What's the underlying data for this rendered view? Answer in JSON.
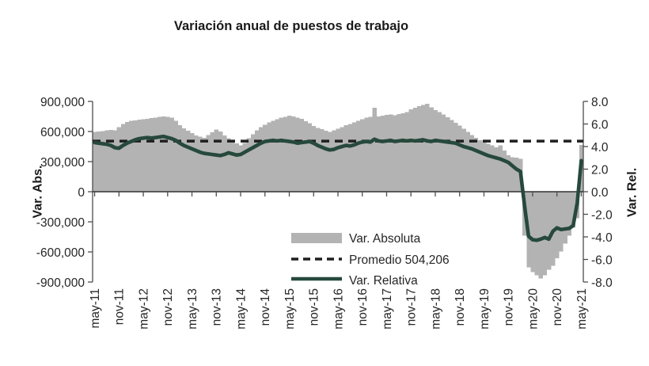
{
  "title": "Variación anual de puestos de trabajo",
  "colors": {
    "bar": "#b3b3b3",
    "average_line": "#1f1f1f",
    "relative_line": "#26493c",
    "axis": "#4d4d4d",
    "text": "#262626"
  },
  "legend": {
    "items": [
      {
        "label": "Var. Absoluta",
        "type": "bar"
      },
      {
        "label": "Promedio 504,206",
        "type": "dashed-line"
      },
      {
        "label": "Var. Relativa",
        "type": "line"
      }
    ]
  },
  "chart_data": {
    "type": "bar+line combo, dual axis, monthly series may-11 to may-21 (121 points)",
    "title": "Variación anual de puestos de trabajo",
    "left_axis": {
      "title": "Var. Abs.",
      "min": -900000,
      "max": 900000,
      "step": 300000,
      "tick_labels": [
        "900,000",
        "600,000",
        "300,000",
        "0",
        "-300,000",
        "-600,000",
        "-900,000"
      ],
      "tick_values": [
        900000,
        600000,
        300000,
        0,
        -300000,
        -600000,
        -900000
      ]
    },
    "right_axis": {
      "title": "Var. Rel.",
      "min": -8.0,
      "max": 8.0,
      "step": 2.0,
      "tick_labels": [
        "8.0",
        "6.0",
        "4.0",
        "2.0",
        "0.0",
        "-2.0",
        "-4.0",
        "-6.0",
        "-8.0"
      ],
      "tick_values": [
        8,
        6,
        4,
        2,
        0,
        -2,
        -4,
        -6,
        -8
      ]
    },
    "x_tick_labels": [
      "may-11",
      "nov-11",
      "may-12",
      "nov-12",
      "may-13",
      "nov-13",
      "may-14",
      "nov-14",
      "may-15",
      "nov-15",
      "may-16",
      "nov-16",
      "may-17",
      "nov-17",
      "may-18",
      "nov-18",
      "may-19",
      "nov-19",
      "may-20",
      "nov-20",
      "may-21"
    ],
    "x_tick_every": 6,
    "n_points": 121,
    "grid": "off",
    "legend_position": "inside lower-center",
    "series": [
      {
        "name": "Var. Absoluta",
        "type": "bar",
        "axis": "left",
        "values": [
          595000,
          600000,
          605000,
          610000,
          615000,
          612000,
          645000,
          675000,
          695000,
          705000,
          712000,
          718000,
          722000,
          727000,
          733000,
          740000,
          748000,
          752000,
          748000,
          738000,
          705000,
          665000,
          630000,
          608000,
          585000,
          562000,
          548000,
          535000,
          565000,
          592000,
          618000,
          600000,
          562000,
          532000,
          505000,
          482000,
          463000,
          485000,
          532000,
          572000,
          612000,
          642000,
          668000,
          692000,
          707000,
          722000,
          737000,
          747000,
          757000,
          750000,
          740000,
          726000,
          702000,
          682000,
          657000,
          637000,
          622000,
          607000,
          597000,
          612000,
          627000,
          642000,
          662000,
          677000,
          692000,
          707000,
          722000,
          737000,
          745000,
          835000,
          752000,
          758000,
          764000,
          770000,
          762000,
          772000,
          782000,
          792000,
          822000,
          838000,
          852000,
          866000,
          878000,
          840000,
          815000,
          792000,
          768000,
          742000,
          715000,
          688000,
          658000,
          628000,
          598000,
          565000,
          538000,
          515000,
          495000,
          478000,
          460000,
          442000,
          460000,
          412000,
          365000,
          345000,
          338000,
          326000,
          -438000,
          -755000,
          -802000,
          -834000,
          -865000,
          -834000,
          -779000,
          -740000,
          -663000,
          -597000,
          -518000,
          -438000,
          -359000,
          -265000,
          465000
        ]
      },
      {
        "name": "Promedio 504,206",
        "type": "dashed-horizontal-line",
        "axis": "left",
        "value": 504206
      },
      {
        "name": "Var. Relativa",
        "type": "line",
        "axis": "right",
        "values": [
          4.35,
          4.3,
          4.25,
          4.2,
          4.1,
          3.9,
          3.85,
          4.1,
          4.3,
          4.45,
          4.6,
          4.7,
          4.75,
          4.8,
          4.75,
          4.8,
          4.85,
          4.9,
          4.8,
          4.7,
          4.55,
          4.3,
          4.1,
          3.95,
          3.8,
          3.65,
          3.5,
          3.4,
          3.35,
          3.3,
          3.25,
          3.2,
          3.3,
          3.45,
          3.35,
          3.25,
          3.3,
          3.5,
          3.7,
          3.9,
          4.1,
          4.3,
          4.45,
          4.5,
          4.55,
          4.5,
          4.55,
          4.5,
          4.45,
          4.4,
          4.3,
          4.35,
          4.4,
          4.45,
          4.3,
          4.1,
          3.95,
          3.8,
          3.7,
          3.75,
          3.9,
          4.0,
          4.1,
          4.05,
          4.15,
          4.3,
          4.4,
          4.45,
          4.4,
          4.65,
          4.5,
          4.45,
          4.5,
          4.55,
          4.45,
          4.5,
          4.55,
          4.5,
          4.55,
          4.5,
          4.55,
          4.6,
          4.5,
          4.45,
          4.55,
          4.5,
          4.45,
          4.4,
          4.35,
          4.3,
          4.15,
          4.0,
          3.9,
          3.8,
          3.65,
          3.5,
          3.35,
          3.2,
          3.1,
          3.0,
          2.9,
          2.75,
          2.6,
          2.3,
          2.0,
          1.8,
          -1.2,
          -3.95,
          -4.25,
          -4.3,
          -4.2,
          -4.05,
          -4.2,
          -3.5,
          -3.2,
          -3.35,
          -3.3,
          -3.25,
          -3.0,
          -1.0,
          2.75
        ]
      }
    ]
  }
}
